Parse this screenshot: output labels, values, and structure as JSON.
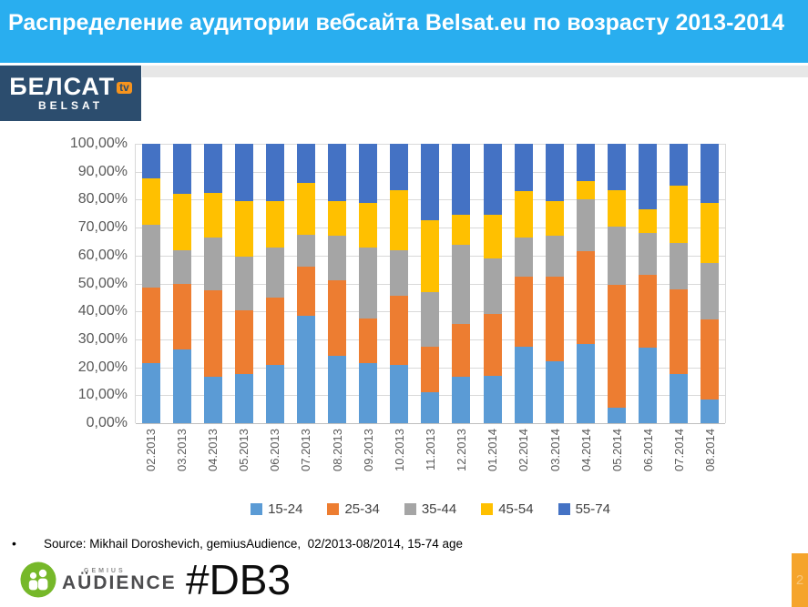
{
  "header": {
    "title": "Распределение аудитории вебсайта Belsat.eu по возрасту 2013-2014"
  },
  "belsat_logo": {
    "name_cyrillic": "БЕЛСАТ",
    "tv_badge": "tv",
    "name_latin": "BELSAT"
  },
  "chart_data": {
    "type": "bar",
    "variant": "100%-stacked-column",
    "title": "",
    "xlabel": "",
    "ylabel": "",
    "ylim": [
      0,
      100
    ],
    "grid": true,
    "legend_position": "bottom",
    "y_ticks_top_to_bottom": [
      "100,00%",
      "90,00%",
      "80,00%",
      "70,00%",
      "60,00%",
      "50,00%",
      "40,00%",
      "30,00%",
      "20,00%",
      "10,00%",
      "0,00%"
    ],
    "categories": [
      "02.2013",
      "03.2013",
      "04.2013",
      "05.2013",
      "06.2013",
      "07.2013",
      "08.2013",
      "09.2013",
      "10.2013",
      "11.2013",
      "12.2013",
      "01.2014",
      "02.2014",
      "03.2014",
      "04.2014",
      "05.2014",
      "06.2014",
      "07.2014",
      "08.2014"
    ],
    "series": [
      {
        "name": "15-24",
        "color": "#5B9BD5",
        "values": [
          21.5,
          26.5,
          16.5,
          17.5,
          21,
          38.5,
          24,
          21.5,
          21,
          11,
          16.5,
          17,
          27.5,
          22,
          28.5,
          5.5,
          27,
          17.5,
          8.5
        ]
      },
      {
        "name": "25-34",
        "color": "#ED7D31",
        "values": [
          27,
          23.5,
          31,
          23,
          24,
          17.5,
          27,
          16,
          24.5,
          16.5,
          19,
          22,
          25,
          30.5,
          33,
          44,
          26,
          30.5,
          28.5
        ]
      },
      {
        "name": "35-44",
        "color": "#A5A5A5",
        "values": [
          22.5,
          12,
          19,
          19,
          18,
          11.5,
          16,
          25.5,
          16.5,
          19.5,
          28.5,
          20,
          14,
          14.5,
          18.5,
          21,
          15,
          16.5,
          20.5
        ]
      },
      {
        "name": "45-54",
        "color": "#FFC000",
        "values": [
          16.5,
          20,
          16,
          20,
          16.5,
          18.5,
          12.5,
          16,
          21.5,
          25.5,
          10.5,
          15.5,
          16.5,
          12.5,
          6.5,
          13,
          8.5,
          20.5,
          21.5
        ]
      },
      {
        "name": "55-74",
        "color": "#4472C4",
        "values": [
          12.5,
          18,
          17.5,
          20.5,
          20.5,
          14,
          20.5,
          21,
          16.5,
          27.5,
          25.5,
          25.5,
          17,
          20.5,
          13.5,
          16.5,
          23.5,
          15,
          21
        ]
      }
    ]
  },
  "footer": {
    "bullet": "•",
    "source": "Source: Mikhail Doroshevich, gemiusAudience,  02/2013-08/2014, 15-74 age",
    "gemius_top": "GEMIUS",
    "gemius_bottom": "AÜDIENCE",
    "hashtag": "#DB3",
    "slide_number": "2",
    "gemius_green": "#76B82A"
  }
}
